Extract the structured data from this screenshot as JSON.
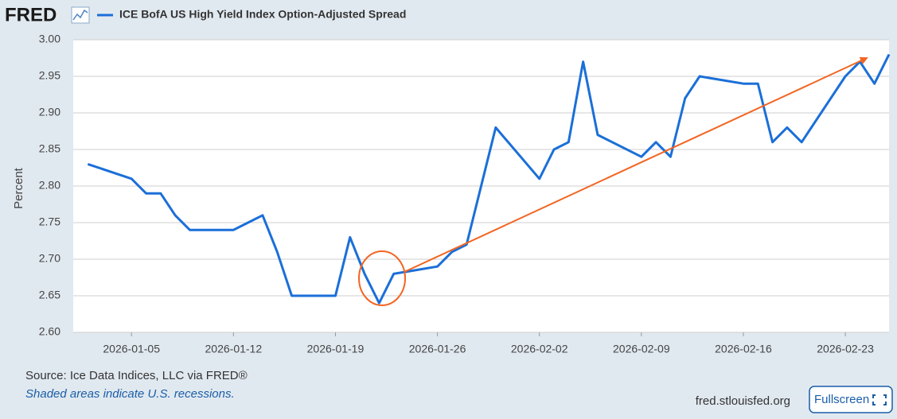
{
  "chart_data": {
    "type": "line",
    "logo": "FRED",
    "y_label": "Percent",
    "source": "Source: Ice Data Indices, LLC via FRED®",
    "note": "Shaded areas indicate U.S. recessions.",
    "site": "fred.stlouisfed.org",
    "button": "Fullscreen",
    "x": [
      "2026-01-02",
      "2026-01-05",
      "2026-01-06",
      "2026-01-07",
      "2026-01-08",
      "2026-01-09",
      "2026-01-12",
      "2026-01-13",
      "2026-01-14",
      "2026-01-15",
      "2026-01-16",
      "2026-01-19",
      "2026-01-20",
      "2026-01-21",
      "2026-01-22",
      "2026-01-23",
      "2026-01-26",
      "2026-01-27",
      "2026-01-28",
      "2026-01-29",
      "2026-01-30",
      "2026-02-02",
      "2026-02-03",
      "2026-02-04",
      "2026-02-05",
      "2026-02-06",
      "2026-02-09",
      "2026-02-10",
      "2026-02-11",
      "2026-02-12",
      "2026-02-13",
      "2026-02-16",
      "2026-02-17",
      "2026-02-18",
      "2026-02-19",
      "2026-02-20",
      "2026-02-23",
      "2026-02-24",
      "2026-02-25",
      "2026-02-26"
    ],
    "series": [
      {
        "name": "ICE BofA US High Yield Index Option-Adjusted Spread",
        "color": "#1b6fd8",
        "values": [
          2.83,
          2.81,
          2.79,
          2.79,
          2.76,
          2.74,
          2.74,
          2.75,
          2.76,
          2.71,
          2.65,
          2.65,
          2.73,
          2.68,
          2.64,
          2.68,
          2.69,
          2.71,
          2.72,
          2.8,
          2.88,
          2.81,
          2.85,
          2.86,
          2.97,
          2.87,
          2.84,
          2.86,
          2.84,
          2.92,
          2.95,
          2.94,
          2.94,
          2.86,
          2.88,
          2.86,
          2.95,
          2.97,
          2.94,
          2.98
        ]
      }
    ],
    "xlim": [
      "2026-01-01",
      "2026-02-26"
    ],
    "xticks": [
      "2026-01-05",
      "2026-01-12",
      "2026-01-19",
      "2026-01-26",
      "2026-02-02",
      "2026-02-09",
      "2026-02-16",
      "2026-02-23"
    ],
    "ylim": [
      2.6,
      3.0
    ],
    "yticks": [
      {
        "value": 2.6,
        "label": "2.60"
      },
      {
        "value": 2.65,
        "label": "2.65"
      },
      {
        "value": 2.7,
        "label": "2.70"
      },
      {
        "value": 2.75,
        "label": "2.75"
      },
      {
        "value": 2.8,
        "label": "2.80"
      },
      {
        "value": 2.85,
        "label": "2.85"
      },
      {
        "value": 2.9,
        "label": "2.90"
      },
      {
        "value": 2.95,
        "label": "2.95"
      },
      {
        "value": 3.0,
        "label": "3.00"
      }
    ],
    "grid": true
  }
}
